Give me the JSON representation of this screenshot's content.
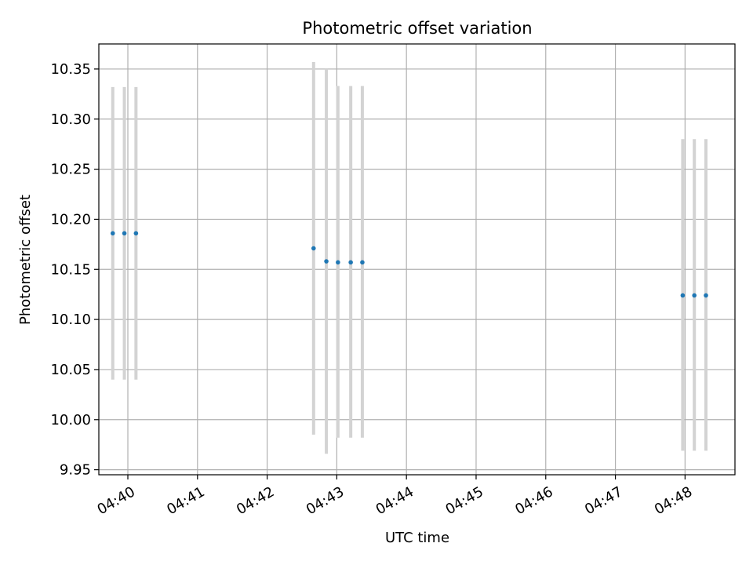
{
  "chart_data": {
    "type": "scatter",
    "title": "Photometric offset variation",
    "xlabel": "UTC time",
    "ylabel": "Photometric offset",
    "x_axis": {
      "kind": "time",
      "min": "04:39:35",
      "max": "04:48:43",
      "tick_values": [
        "04:40:00",
        "04:41:00",
        "04:42:00",
        "04:43:00",
        "04:44:00",
        "04:45:00",
        "04:46:00",
        "04:47:00",
        "04:48:00"
      ],
      "tick_labels": [
        "04:40",
        "04:41",
        "04:42",
        "04:43",
        "04:44",
        "04:45",
        "04:46",
        "04:47",
        "04:48"
      ]
    },
    "y_axis": {
      "min": 9.945,
      "max": 10.375,
      "tick_values": [
        9.95,
        10.0,
        10.05,
        10.1,
        10.15,
        10.2,
        10.25,
        10.3,
        10.35
      ],
      "tick_labels": [
        "9.95",
        "10.00",
        "10.05",
        "10.10",
        "10.15",
        "10.20",
        "10.25",
        "10.30",
        "10.35"
      ]
    },
    "grid": true,
    "marker_color": "#1f77b4",
    "errorbar_color": "#d3d3d3",
    "series": [
      {
        "points": [
          {
            "x": "04:39:47",
            "y": 10.186,
            "ylow": 10.04,
            "yhigh": 10.332
          },
          {
            "x": "04:39:57",
            "y": 10.186,
            "ylow": 10.04,
            "yhigh": 10.332
          },
          {
            "x": "04:40:07",
            "y": 10.186,
            "ylow": 10.04,
            "yhigh": 10.332
          },
          {
            "x": "04:42:40",
            "y": 10.171,
            "ylow": 9.985,
            "yhigh": 10.357
          },
          {
            "x": "04:42:51",
            "y": 10.158,
            "ylow": 9.966,
            "yhigh": 10.35
          },
          {
            "x": "04:43:01",
            "y": 10.157,
            "ylow": 9.982,
            "yhigh": 10.333
          },
          {
            "x": "04:43:12",
            "y": 10.157,
            "ylow": 9.982,
            "yhigh": 10.333
          },
          {
            "x": "04:43:22",
            "y": 10.157,
            "ylow": 9.982,
            "yhigh": 10.333
          },
          {
            "x": "04:47:58",
            "y": 10.124,
            "ylow": 9.969,
            "yhigh": 10.28
          },
          {
            "x": "04:48:08",
            "y": 10.124,
            "ylow": 9.969,
            "yhigh": 10.28
          },
          {
            "x": "04:48:18",
            "y": 10.124,
            "ylow": 9.969,
            "yhigh": 10.28
          }
        ]
      }
    ]
  }
}
